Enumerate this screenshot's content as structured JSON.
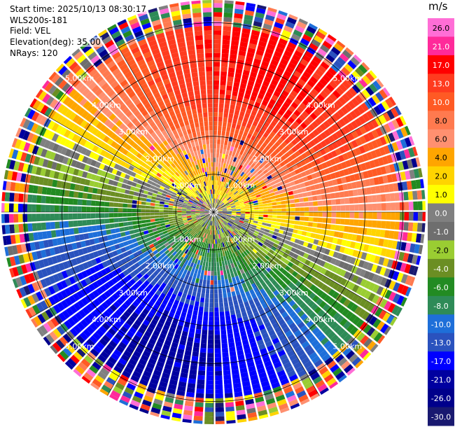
{
  "header": {
    "start_time": "Start time: 2025/10/13 08:30:17",
    "instrument": "WLS200s-181",
    "field": "Field: VEL",
    "elevation": "Elevation(deg): 35.00",
    "nrays": "NRays: 120"
  },
  "chart_data": {
    "type": "ppi",
    "field": "VEL",
    "units": "m/s",
    "nrays": 120,
    "range_rings_km": [
      1.0,
      2.0,
      3.0,
      4.0,
      5.0
    ],
    "ring_labels": [
      "1.00km",
      "2.00km",
      "3.00km",
      "4.00km",
      "5.00km"
    ],
    "max_range_km": 5.6,
    "colorbar": {
      "unit_label": "m/s",
      "ticks": [
        "26.0",
        "21.0",
        "17.0",
        "13.0",
        "10.0",
        "8.0",
        "6.0",
        "4.0",
        "2.0",
        "1.0",
        "0.0",
        "-1.0",
        "-2.0",
        "-4.0",
        "-6.0",
        "-8.0",
        "-10.0",
        "-13.0",
        "-17.0",
        "-21.0",
        "-26.0",
        "-30.0"
      ],
      "colors": [
        "#ff6ed6",
        "#ff2a9a",
        "#ff0000",
        "#ff3b1f",
        "#ff5a24",
        "#ff7a4f",
        "#ff9070",
        "#ffa500",
        "#ffd400",
        "#ffff00",
        "#808080",
        "#6e6e6e",
        "#9acd32",
        "#6b8e23",
        "#228b22",
        "#2e8b57",
        "#1e6fd9",
        "#2a52be",
        "#0000ff",
        "#0000a0",
        "#00008b",
        "#191970"
      ]
    }
  }
}
